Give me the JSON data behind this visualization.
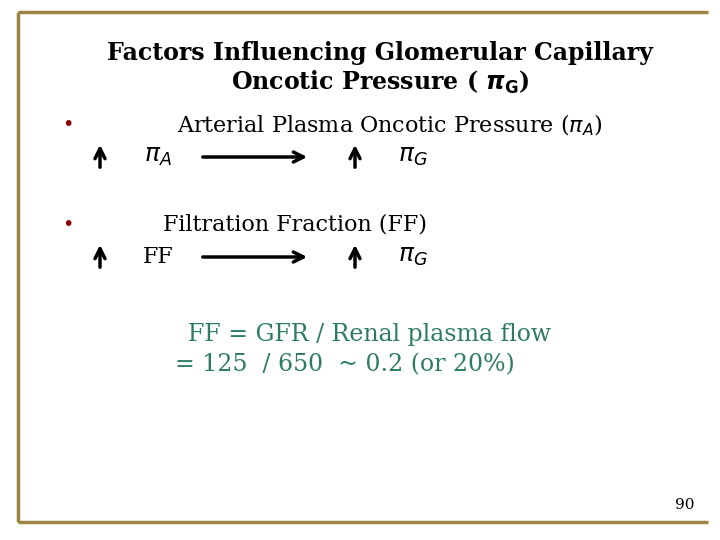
{
  "bg_color": "#ffffff",
  "border_color": "#9B8540",
  "title_line1": "Factors Influencing Glomerular Capillary",
  "title_line2": "Oncotic Pressure ( $\\boldsymbol{\\pi}_\\mathbf{G}$)",
  "bullet_color": "#8B0000",
  "text_color": "#000000",
  "teal_color": "#2E7D60",
  "page_num": "90",
  "ff_equation1": "FF = GFR / Renal plasma flow",
  "ff_equation2": "= 125  / 650  ~ 0.2 (or 20%)"
}
